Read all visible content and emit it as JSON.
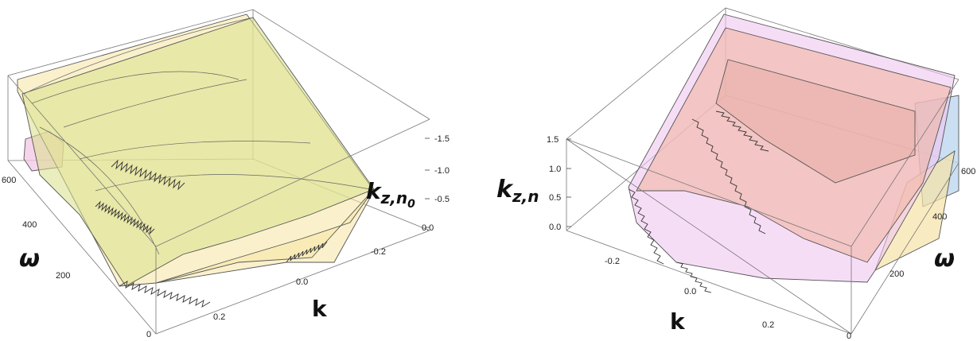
{
  "chart_data": [
    {
      "type": "surface3d",
      "axes": {
        "x": {
          "label": "k",
          "ticks": [
            "-0.2",
            "0.0",
            "0.2"
          ]
        },
        "y": {
          "label": "ω",
          "ticks": [
            "0",
            "200",
            "400",
            "600"
          ]
        },
        "z": {
          "label_main": "k",
          "label_sub": "z,n",
          "label_subsub": "0",
          "ticks": [
            "0.0",
            "-0.5",
            "-1.0",
            "-1.5"
          ]
        }
      },
      "surface_colors": [
        "#d8e08a",
        "#f5e6a3",
        "#f3c7e6"
      ],
      "box": true
    },
    {
      "type": "surface3d",
      "axes": {
        "x": {
          "label": "k",
          "ticks": [
            "-0.2",
            "0.0",
            "0.2"
          ]
        },
        "y": {
          "label": "ω",
          "ticks": [
            "0",
            "200",
            "400",
            "600"
          ]
        },
        "z": {
          "label_main": "k",
          "label_sub": "z,n",
          "ticks": [
            "0.0",
            "0.5",
            "1.0",
            "1.5"
          ]
        }
      },
      "surface_colors": [
        "#f0c7f0",
        "#f2b6a4",
        "#b9d4ee",
        "#f6e3a6"
      ],
      "box": true
    }
  ]
}
